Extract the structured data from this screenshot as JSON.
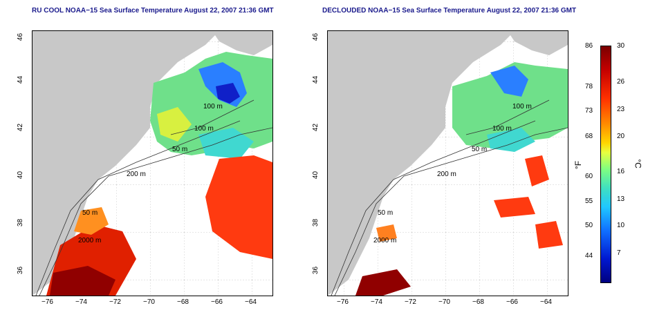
{
  "titles": {
    "left": "RU COOL NOAA−15 Sea Surface Temperature August 22, 2007 21:36 GMT",
    "right": "DECLOUDED NOAA−15 Sea Surface Temperature August 22, 2007 21:36 GMT"
  },
  "axes": {
    "x_ticks": [
      "−76",
      "−74",
      "−72",
      "−70",
      "−68",
      "−66",
      "−64"
    ],
    "y_ticks": [
      "46",
      "44",
      "42",
      "40",
      "38",
      "36"
    ]
  },
  "contours": {
    "left": [
      "100 m",
      "100 m",
      "50 m",
      "200 m",
      "50 m",
      "2000 m"
    ],
    "right": [
      "100 m",
      "100 m",
      "50 m",
      "200 m",
      "50 m",
      "2000 m"
    ]
  },
  "colorbar": {
    "fahrenheit_ticks": [
      "86",
      "78",
      "73",
      "68",
      "60",
      "55",
      "50",
      "44"
    ],
    "celsius_ticks": [
      "30",
      "26",
      "23",
      "20",
      "16",
      "13",
      "10",
      "7"
    ],
    "fahrenheit_unit": "°F",
    "celsius_unit": "°C",
    "colors": [
      "#7a0000",
      "#c40000",
      "#ff3000",
      "#ff8c00",
      "#ffd700",
      "#80ff80",
      "#40e0c0",
      "#20c8ff",
      "#1070ff",
      "#0018d0",
      "#000080"
    ]
  }
}
